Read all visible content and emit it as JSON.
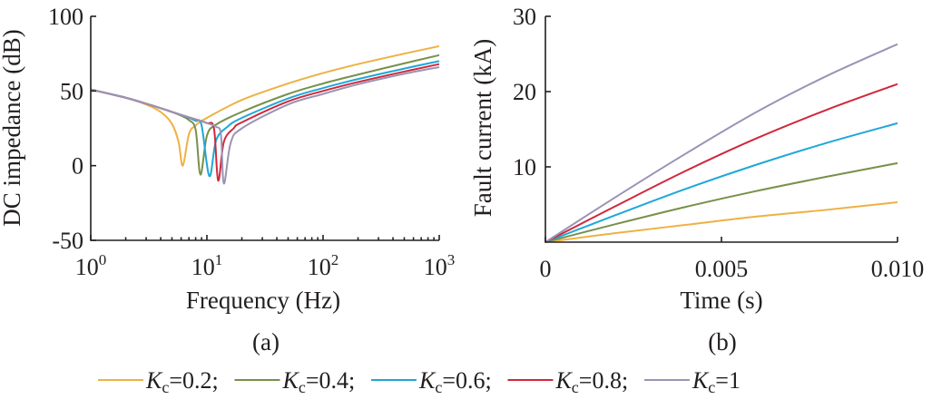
{
  "chart_data": [
    {
      "type": "line",
      "panel_label": "(a)",
      "xlabel": "Frequency (Hz)",
      "ylabel": "DC impedance (dB)",
      "xscale": "log",
      "xlim": [
        1,
        1000
      ],
      "ylim": [
        -50,
        100
      ],
      "x_ticks": [
        {
          "base": "10",
          "exp": "0",
          "value": 1
        },
        {
          "base": "10",
          "exp": "1",
          "value": 10
        },
        {
          "base": "10",
          "exp": "2",
          "value": 100
        },
        {
          "base": "10",
          "exp": "3",
          "value": 1000
        }
      ],
      "y_ticks": [
        {
          "label": "100",
          "value": 100
        },
        {
          "label": "50",
          "value": 50
        },
        {
          "label": "0",
          "value": 0
        },
        {
          "label": "-50",
          "value": -50
        }
      ],
      "series": [
        {
          "name": "Kc=0.2",
          "color": "#eeb144",
          "x": [
            1,
            2,
            3,
            4,
            5,
            5.7,
            6.2,
            7,
            8,
            10,
            20,
            50,
            100,
            200,
            500,
            1000
          ],
          "y": [
            51,
            45.5,
            41,
            36,
            28,
            16,
            0,
            21,
            27,
            32,
            44,
            55,
            62,
            68,
            75,
            80
          ]
        },
        {
          "name": "Kc=0.4",
          "color": "#78904a",
          "x": [
            1,
            2,
            3,
            4,
            5,
            6,
            7,
            8,
            8.8,
            10,
            12,
            20,
            50,
            100,
            200,
            500,
            1000
          ],
          "y": [
            51,
            45.5,
            41.5,
            38.5,
            36,
            33.5,
            30.5,
            24,
            -6,
            20,
            27.5,
            36,
            48,
            55,
            61,
            68.5,
            74
          ]
        },
        {
          "name": "Kc=0.6",
          "color": "#1ea8d8",
          "x": [
            1,
            2,
            3,
            4,
            5,
            6,
            7,
            8,
            9,
            10.5,
            12,
            15,
            20,
            50,
            100,
            200,
            500,
            1000
          ],
          "y": [
            51,
            45.5,
            41.5,
            38.5,
            36,
            34,
            32,
            30,
            27,
            -7,
            17,
            26,
            32,
            45,
            52,
            58,
            65,
            70
          ]
        },
        {
          "name": "Kc=0.8",
          "color": "#d0283c",
          "x": [
            1,
            2,
            3,
            4,
            5,
            6,
            8,
            10,
            11.5,
            12.5,
            14,
            17,
            20,
            50,
            100,
            200,
            500,
            1000
          ],
          "y": [
            51,
            45.5,
            41.5,
            38.5,
            36,
            34,
            31,
            28.5,
            25,
            -10,
            16,
            25,
            29,
            43,
            50,
            56,
            63,
            68
          ]
        },
        {
          "name": "Kc=1",
          "color": "#9b93b5",
          "x": [
            1,
            2,
            3,
            4,
            5,
            6,
            8,
            10,
            12,
            13.2,
            14,
            16,
            20,
            50,
            100,
            200,
            500,
            1000
          ],
          "y": [
            51,
            45.5,
            41.5,
            38.5,
            36,
            34,
            31,
            28.5,
            26,
            21,
            -12,
            15,
            25,
            41,
            48,
            54.5,
            61.5,
            66
          ]
        }
      ]
    },
    {
      "type": "line",
      "panel_label": "(b)",
      "xlabel": "Time (s)",
      "ylabel": "Fault current (kA)",
      "xlim": [
        0,
        0.01
      ],
      "ylim": [
        0,
        30
      ],
      "x_ticks": [
        {
          "label": "0",
          "value": 0
        },
        {
          "label": "0.005",
          "value": 0.005
        },
        {
          "label": "0.010",
          "value": 0.01
        }
      ],
      "y_ticks": [
        {
          "label": "30",
          "value": 30
        },
        {
          "label": "20",
          "value": 20
        },
        {
          "label": "10",
          "value": 10
        }
      ],
      "series": [
        {
          "name": "Kc=0.2",
          "color": "#eeb144",
          "x": [
            0,
            0.002,
            0.004,
            0.006,
            0.008,
            0.01
          ],
          "y": [
            0,
            1.2,
            2.3,
            3.4,
            4.3,
            5.3
          ]
        },
        {
          "name": "Kc=0.4",
          "color": "#78904a",
          "x": [
            0,
            0.002,
            0.004,
            0.006,
            0.008,
            0.01
          ],
          "y": [
            0,
            2.4,
            4.7,
            6.8,
            8.7,
            10.5
          ]
        },
        {
          "name": "Kc=0.6",
          "color": "#1ea8d8",
          "x": [
            0,
            0.002,
            0.004,
            0.006,
            0.008,
            0.01
          ],
          "y": [
            0,
            3.6,
            7.1,
            10.3,
            13.2,
            15.8
          ]
        },
        {
          "name": "Kc=0.8",
          "color": "#d0283c",
          "x": [
            0,
            0.002,
            0.004,
            0.006,
            0.008,
            0.01
          ],
          "y": [
            0,
            4.8,
            9.5,
            13.8,
            17.6,
            21.0
          ]
        },
        {
          "name": "Kc=1",
          "color": "#9b93b5",
          "x": [
            0,
            0.002,
            0.004,
            0.006,
            0.008,
            0.01
          ],
          "y": [
            0,
            6.0,
            11.8,
            17.3,
            22.1,
            26.3
          ]
        }
      ]
    }
  ],
  "legend": {
    "placement": "bottom",
    "items": [
      {
        "var": "K",
        "sub": "c",
        "rest": "=0.2;",
        "color": "#eeb144"
      },
      {
        "var": "K",
        "sub": "c",
        "rest": "=0.4;",
        "color": "#78904a"
      },
      {
        "var": "K",
        "sub": "c",
        "rest": "=0.6;",
        "color": "#1ea8d8"
      },
      {
        "var": "K",
        "sub": "c",
        "rest": "=0.8;",
        "color": "#d0283c"
      },
      {
        "var": "K",
        "sub": "c",
        "rest": "=1",
        "color": "#9b93b5"
      }
    ]
  }
}
